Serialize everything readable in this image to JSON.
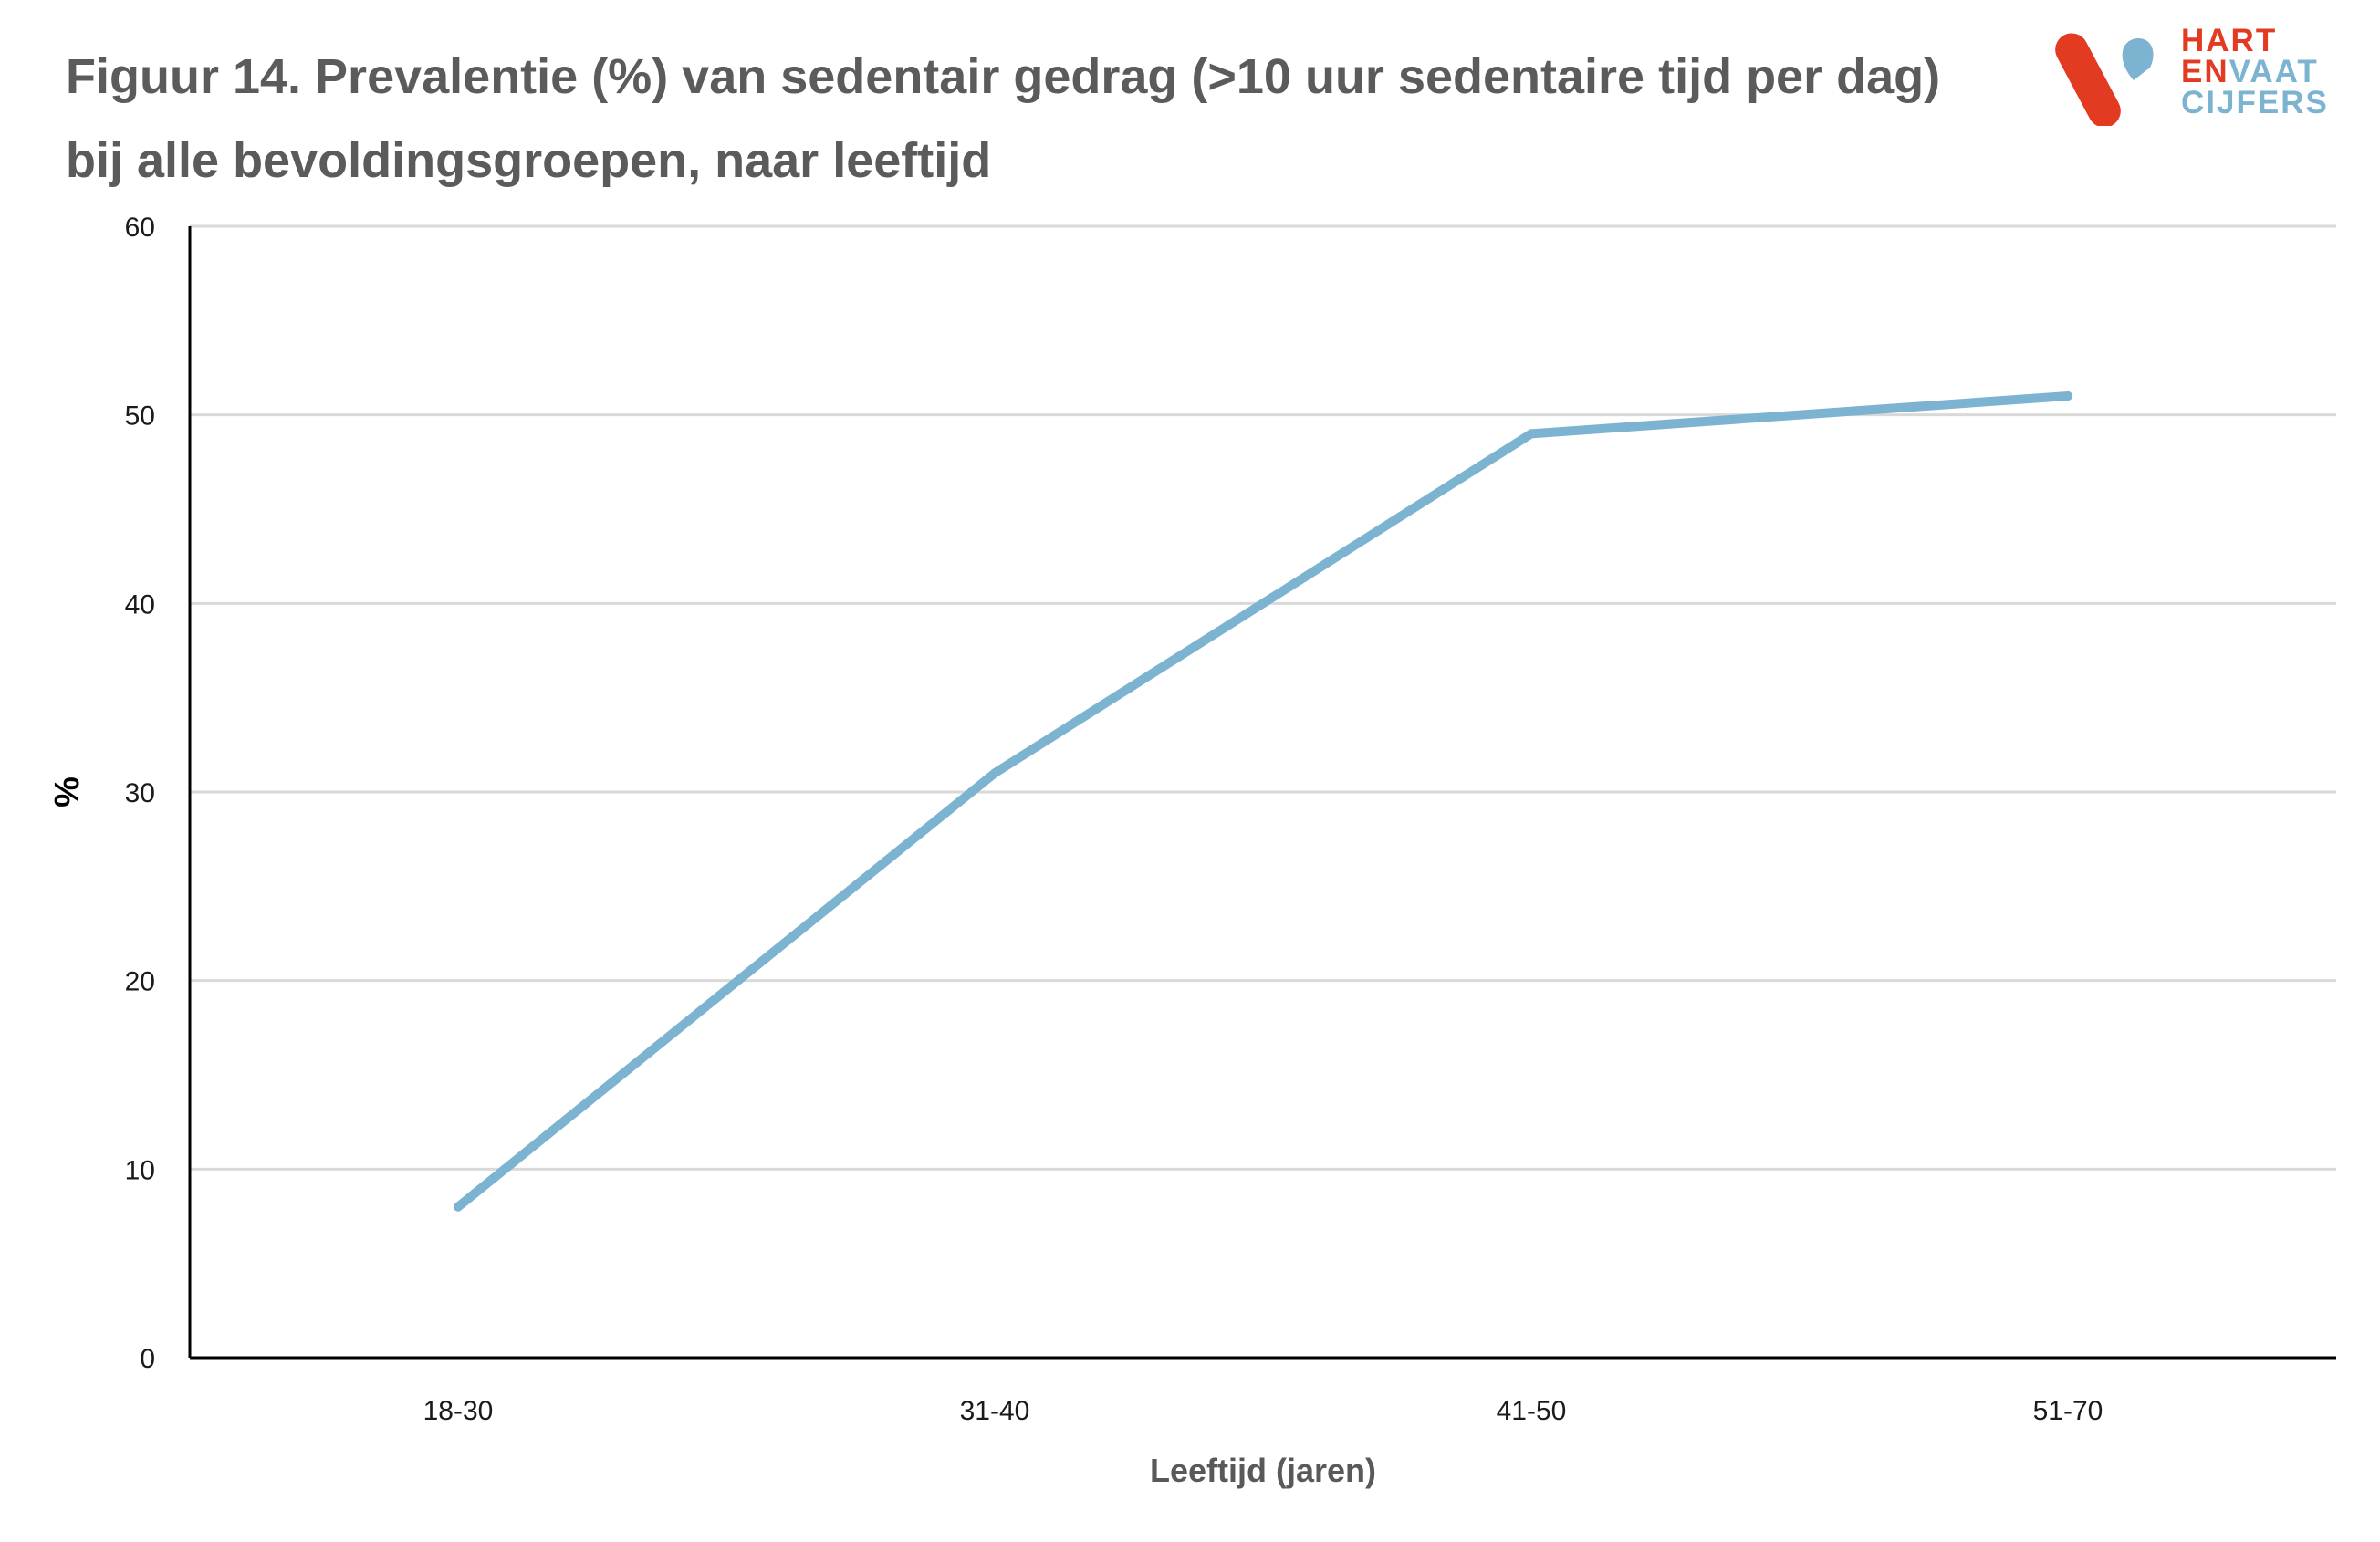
{
  "header": {
    "title": "Figuur 14. Prevalentie (%) van sedentair gedrag  (>10 uur sedentaire tijd per dag) bij alle bevoldingsgroepen, naar leeftijd"
  },
  "logo": {
    "line1": "HART",
    "line2a": "EN",
    "line2b": "VAAT",
    "line3": "CIJFERS",
    "colors": {
      "red": "#e33a22",
      "blue": "#7bb3d0"
    }
  },
  "chart_data": {
    "type": "line",
    "categories": [
      "18-30",
      "31-40",
      "41-50",
      "51-70"
    ],
    "series": [
      {
        "values": [
          8,
          31,
          49,
          51
        ],
        "color": "#7bb3d0"
      }
    ],
    "xlabel": "Leeftijd (jaren)",
    "ylabel": "%",
    "ylim": [
      0,
      60
    ],
    "yticks": [
      0,
      10,
      20,
      30,
      40,
      50,
      60
    ],
    "grid": true,
    "legend": "none"
  }
}
